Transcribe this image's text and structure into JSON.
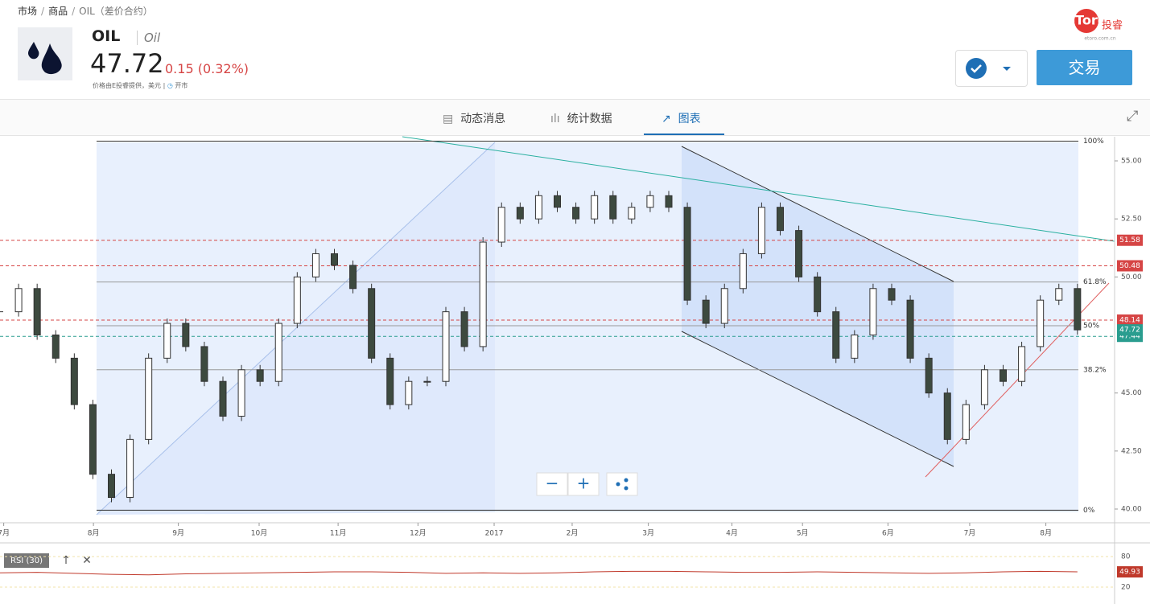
{
  "breadcrumb": [
    "市场",
    "商品",
    "OIL（差价合约）"
  ],
  "instrument": {
    "symbol": "OIL",
    "name": "Oil",
    "price": "47.72",
    "change": "0.15 (0.32%)",
    "note": "价格由E投睿提供，美元 |",
    "status": "开市"
  },
  "logo": {
    "text": "eToro",
    "cn": "投睿",
    "url": "etoro.com.cn"
  },
  "trade_button": "交易",
  "tabs": [
    "动态消息",
    "统计数据",
    "图表"
  ],
  "chart_data": [
    {
      "type": "candlestick",
      "up_color": "#ffffff",
      "down_color": "#3d4a3f",
      "x": [
        0,
        1,
        2,
        3,
        4,
        5,
        6,
        7,
        8,
        9,
        10,
        11,
        12,
        13,
        14,
        15,
        16,
        17,
        18,
        19,
        20,
        21,
        22,
        23,
        24,
        25,
        26,
        27,
        28,
        29,
        30,
        31,
        32,
        33,
        34,
        35,
        36,
        37,
        38,
        39,
        40,
        41,
        42,
        43,
        44,
        45,
        46,
        47,
        48,
        49,
        50,
        51,
        52,
        53,
        54,
        55,
        56,
        57,
        58
      ],
      "values": [
        48.5,
        49.5,
        47.5,
        46.5,
        44.5,
        41.5,
        40.5,
        43,
        46.5,
        48,
        47,
        45.5,
        44,
        46,
        45.5,
        48,
        50,
        51,
        50.5,
        49.5,
        46.5,
        44.5,
        45.5,
        45.5,
        48.5,
        47,
        51.5,
        53,
        52.5,
        53.5,
        53,
        52.5,
        53.5,
        52.5,
        53,
        53.5,
        53,
        49,
        48,
        49.5,
        51,
        53,
        52,
        50,
        48.5,
        46.5,
        47.5,
        49.5,
        49,
        46.5,
        45,
        43,
        44.5,
        46,
        45.5,
        47,
        49,
        49.5,
        47.72
      ],
      "xlim": [
        0,
        60
      ],
      "ylim": [
        39.41,
        56.04
      ],
      "xticks": [
        {
          "value": 0.2,
          "label": "7月"
        },
        {
          "value": 5.03,
          "label": "8月"
        },
        {
          "value": 9.6,
          "label": "9月"
        },
        {
          "value": 13.95,
          "label": "10月"
        },
        {
          "value": 18.2,
          "label": "11月"
        },
        {
          "value": 22.5,
          "label": "12月"
        },
        {
          "value": 26.6,
          "label": "2017"
        },
        {
          "value": 30.8,
          "label": "2月"
        },
        {
          "value": 34.9,
          "label": "3月"
        },
        {
          "value": 39.4,
          "label": "4月"
        },
        {
          "value": 43.2,
          "label": "5月"
        },
        {
          "value": 47.8,
          "label": "6月"
        },
        {
          "value": 52.2,
          "label": "7月"
        },
        {
          "value": 56.3,
          "label": "8月"
        }
      ],
      "yticks": [
        {
          "value": 55,
          "label": "55.00"
        },
        {
          "value": 52.5,
          "label": "52.50"
        },
        {
          "value": 50,
          "label": "50.00"
        },
        {
          "value": 45,
          "label": "45.00"
        },
        {
          "value": 42.5,
          "label": "42.50"
        },
        {
          "value": 40,
          "label": "40.00"
        }
      ],
      "price_lines": [
        {
          "value": 51.58,
          "color": "#d64545"
        },
        {
          "value": 50.48,
          "color": "#d64545"
        },
        {
          "value": 48.14,
          "color": "#d64545"
        },
        {
          "value": 47.44,
          "color": "#2a9d8f"
        }
      ],
      "current_color": "#2a9d8f",
      "fib_levels": [
        {
          "value": 55.85,
          "label": "100%"
        },
        {
          "value": 49.78,
          "label": "61.8%"
        },
        {
          "value": 47.9,
          "label": "50%"
        },
        {
          "value": 46.0,
          "label": "38.2%"
        },
        {
          "value": 39.95,
          "label": "0%"
        }
      ]
    },
    {
      "type": "line",
      "name": "RSI (30)",
      "color": "#c0392b",
      "x": [
        0,
        2,
        4,
        6,
        8,
        10,
        12,
        14,
        16,
        18,
        20,
        22,
        24,
        26,
        28,
        30,
        32,
        34,
        36,
        38,
        40,
        42,
        44,
        46,
        48,
        50,
        52,
        54,
        56,
        58
      ],
      "values": [
        48,
        49,
        47,
        45,
        44,
        46,
        47,
        48,
        49,
        50,
        50,
        49,
        47,
        48,
        47,
        48,
        50,
        51,
        51,
        50,
        49,
        49,
        50,
        49,
        48,
        47,
        48,
        50,
        51,
        49.93
      ],
      "xlim": [
        0,
        60
      ],
      "ylim": [
        0,
        100
      ],
      "yticks": [
        80,
        20
      ]
    }
  ]
}
